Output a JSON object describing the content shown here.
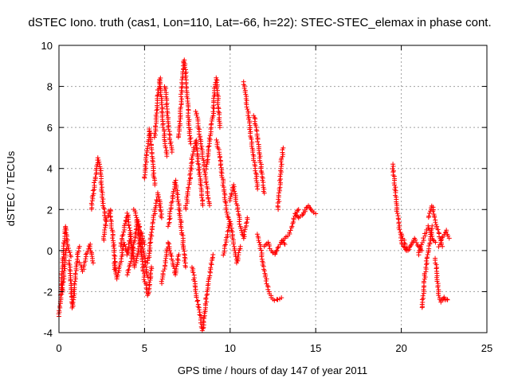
{
  "chart_data": {
    "type": "scatter",
    "title": "dSTEC Iono. truth (cas1, Lon=110, Lat=-66, h=22): STEC-STEC_elemax in phase cont.",
    "xlabel": "GPS time / hours of day 147 of year 2011",
    "ylabel": "dSTEC  / TECUs",
    "xlim": [
      0,
      25
    ],
    "ylim": [
      -4,
      10
    ],
    "xticks": [
      0,
      5,
      10,
      15,
      20,
      25
    ],
    "yticks": [
      -4,
      -2,
      0,
      2,
      4,
      6,
      8,
      10
    ],
    "grid": true,
    "marker": "+",
    "series_color": "#ff0000",
    "segments": [
      {
        "x": [
          0.0,
          0.1,
          0.2,
          0.3,
          0.4,
          0.5
        ],
        "y": [
          -3.2,
          -2.4,
          -1.0,
          0.5,
          1.2,
          0.3
        ]
      },
      {
        "x": [
          0.2,
          0.3,
          0.4,
          0.55,
          0.7
        ],
        "y": [
          -2.0,
          -1.2,
          0.0,
          0.2,
          -0.3
        ]
      },
      {
        "x": [
          0.6,
          0.7,
          0.8,
          0.9,
          1.0,
          1.1,
          1.2
        ],
        "y": [
          -0.5,
          -1.8,
          -2.8,
          -1.9,
          -0.9,
          -0.2,
          0.2
        ]
      },
      {
        "x": [
          1.2,
          1.4,
          1.6,
          1.8,
          2.0
        ],
        "y": [
          -0.6,
          -1.0,
          -0.2,
          0.3,
          -0.6
        ]
      },
      {
        "x": [
          1.9,
          2.0,
          2.1,
          2.2,
          2.3,
          2.4,
          2.5,
          2.6,
          2.7
        ],
        "y": [
          2.0,
          2.8,
          3.4,
          3.9,
          4.5,
          4.2,
          3.0,
          2.2,
          1.5
        ]
      },
      {
        "x": [
          2.6,
          2.8,
          3.0,
          3.1,
          3.2,
          3.3
        ],
        "y": [
          0.5,
          1.6,
          2.0,
          1.0,
          0.2,
          -1.0
        ]
      },
      {
        "x": [
          3.2,
          3.4,
          3.6,
          3.8,
          4.0,
          4.2
        ],
        "y": [
          -0.6,
          -1.4,
          -0.6,
          0.4,
          -0.2,
          0.8
        ]
      },
      {
        "x": [
          3.6,
          3.8,
          4.0,
          4.2,
          4.4,
          4.6,
          4.8,
          5.0
        ],
        "y": [
          0.2,
          1.0,
          1.8,
          0.6,
          -0.8,
          -0.2,
          0.9,
          0.3
        ]
      },
      {
        "x": [
          4.0,
          4.2,
          4.4,
          4.6,
          4.8,
          5.0,
          5.2
        ],
        "y": [
          -1.2,
          -0.5,
          0.4,
          1.5,
          0.7,
          -0.4,
          -1.3
        ]
      },
      {
        "x": [
          4.4,
          4.6,
          4.8,
          5.0,
          5.2,
          5.4
        ],
        "y": [
          2.0,
          1.2,
          0.0,
          -1.4,
          -2.2,
          -0.8
        ]
      },
      {
        "x": [
          5.0,
          5.1,
          5.2,
          5.3,
          5.4,
          5.5,
          5.6
        ],
        "y": [
          3.5,
          4.4,
          5.3,
          5.9,
          5.0,
          4.0,
          3.2
        ]
      },
      {
        "x": [
          5.2,
          5.4,
          5.6,
          5.8,
          6.0
        ],
        "y": [
          -0.6,
          0.8,
          1.9,
          2.8,
          1.6
        ]
      },
      {
        "x": [
          5.6,
          5.7,
          5.8,
          5.9,
          6.0,
          6.1,
          6.2,
          6.3
        ],
        "y": [
          5.5,
          6.6,
          7.8,
          8.4,
          7.2,
          6.0,
          5.2,
          4.6
        ]
      },
      {
        "x": [
          6.0,
          6.2,
          6.4,
          6.6,
          6.8,
          7.0
        ],
        "y": [
          -1.6,
          -0.6,
          0.4,
          -0.4,
          -1.2,
          -0.2
        ]
      },
      {
        "x": [
          6.2,
          6.3,
          6.4,
          6.5,
          6.6
        ],
        "y": [
          8.0,
          7.0,
          6.0,
          5.4,
          4.8
        ]
      },
      {
        "x": [
          6.4,
          6.6,
          6.8,
          7.0,
          7.2,
          7.4
        ],
        "y": [
          1.2,
          2.4,
          3.4,
          2.2,
          0.8,
          -0.8
        ]
      },
      {
        "x": [
          7.0,
          7.1,
          7.2,
          7.3,
          7.4,
          7.5,
          7.6,
          7.7
        ],
        "y": [
          5.5,
          6.8,
          8.2,
          9.3,
          8.8,
          7.4,
          6.2,
          5.2
        ]
      },
      {
        "x": [
          7.4,
          7.6,
          7.8,
          8.0,
          8.2,
          8.4
        ],
        "y": [
          2.0,
          3.2,
          4.6,
          5.4,
          3.8,
          2.2
        ]
      },
      {
        "x": [
          7.8,
          8.0,
          8.2,
          8.4,
          8.6,
          8.8,
          9.0
        ],
        "y": [
          -0.8,
          -2.0,
          -3.0,
          -3.9,
          -2.4,
          -1.2,
          -0.2
        ]
      },
      {
        "x": [
          8.0,
          8.2,
          8.4,
          8.6,
          8.8
        ],
        "y": [
          6.8,
          5.8,
          4.6,
          3.4,
          2.2
        ]
      },
      {
        "x": [
          8.6,
          8.8,
          9.0,
          9.1,
          9.2,
          9.3,
          9.4
        ],
        "y": [
          4.0,
          5.4,
          6.6,
          8.0,
          8.4,
          7.2,
          6.0
        ]
      },
      {
        "x": [
          9.2,
          9.4,
          9.6,
          9.8,
          10.0
        ],
        "y": [
          5.4,
          4.6,
          3.2,
          2.0,
          1.2
        ]
      },
      {
        "x": [
          9.6,
          9.8,
          10.0,
          10.2,
          10.4,
          10.6
        ],
        "y": [
          -0.2,
          0.6,
          1.4,
          0.4,
          -0.6,
          0.2
        ]
      },
      {
        "x": [
          10.0,
          10.2,
          10.4,
          10.6,
          10.8,
          11.0
        ],
        "y": [
          2.4,
          3.2,
          2.2,
          1.2,
          0.6,
          1.6
        ]
      },
      {
        "x": [
          10.8,
          10.9,
          11.0,
          11.1,
          11.2,
          11.3,
          11.4,
          11.5,
          11.6
        ],
        "y": [
          8.2,
          7.6,
          7.0,
          6.4,
          5.6,
          5.0,
          4.4,
          3.8,
          3.0
        ]
      },
      {
        "x": [
          11.4,
          11.5,
          11.6,
          11.7,
          11.8,
          11.9,
          12.0
        ],
        "y": [
          6.6,
          6.0,
          5.4,
          4.8,
          4.2,
          3.4,
          2.8
        ]
      },
      {
        "x": [
          11.6,
          11.8,
          12.0,
          12.2,
          12.4,
          12.6,
          12.8,
          13.0
        ],
        "y": [
          0.8,
          0.0,
          -1.0,
          -1.8,
          -2.3,
          -2.4,
          -2.4,
          -2.3
        ]
      },
      {
        "x": [
          12.0,
          12.2,
          12.4,
          12.6,
          12.8,
          13.0,
          13.2
        ],
        "y": [
          0.2,
          0.4,
          0.0,
          -0.2,
          0.1,
          0.5,
          0.3
        ]
      },
      {
        "x": [
          12.8,
          12.9,
          13.0,
          13.1
        ],
        "y": [
          2.0,
          3.2,
          4.4,
          5.0
        ]
      },
      {
        "x": [
          13.0,
          13.2,
          13.4,
          13.6,
          13.8,
          14.0
        ],
        "y": [
          0.4,
          0.6,
          0.7,
          1.2,
          1.8,
          2.0
        ]
      },
      {
        "x": [
          13.8,
          14.0,
          14.2,
          14.4,
          14.6,
          14.8,
          15.0
        ],
        "y": [
          1.8,
          1.6,
          1.7,
          2.0,
          2.2,
          1.9,
          1.8
        ]
      },
      {
        "x": [
          19.5,
          19.6,
          19.7,
          19.8,
          19.9,
          20.0,
          20.1,
          20.2,
          20.3
        ],
        "y": [
          4.2,
          3.4,
          2.4,
          1.6,
          1.0,
          0.6,
          0.2,
          0.1,
          0.0
        ]
      },
      {
        "x": [
          20.0,
          20.2,
          20.4,
          20.6,
          20.8,
          21.0,
          21.2
        ],
        "y": [
          0.8,
          0.4,
          0.0,
          0.3,
          0.6,
          0.2,
          0.0
        ]
      },
      {
        "x": [
          21.0,
          21.2,
          21.4,
          21.6,
          21.8,
          22.0
        ],
        "y": [
          -0.2,
          0.3,
          0.8,
          1.2,
          0.6,
          0.4
        ]
      },
      {
        "x": [
          21.2,
          21.3,
          21.4,
          21.5,
          21.6,
          21.7,
          21.8
        ],
        "y": [
          -2.8,
          -2.0,
          -1.0,
          -0.4,
          0.0,
          0.6,
          1.2
        ]
      },
      {
        "x": [
          21.6,
          21.8,
          22.0,
          22.2,
          22.4
        ],
        "y": [
          1.6,
          2.2,
          1.4,
          0.8,
          0.2
        ]
      },
      {
        "x": [
          22.0,
          22.1,
          22.2,
          22.3,
          22.4,
          22.5,
          22.6,
          22.7
        ],
        "y": [
          -0.4,
          -1.4,
          -2.2,
          -2.5,
          -2.4,
          -2.3,
          -2.4,
          -2.4
        ]
      },
      {
        "x": [
          22.2,
          22.4,
          22.6,
          22.8
        ],
        "y": [
          0.2,
          0.6,
          1.0,
          0.6
        ]
      }
    ]
  }
}
